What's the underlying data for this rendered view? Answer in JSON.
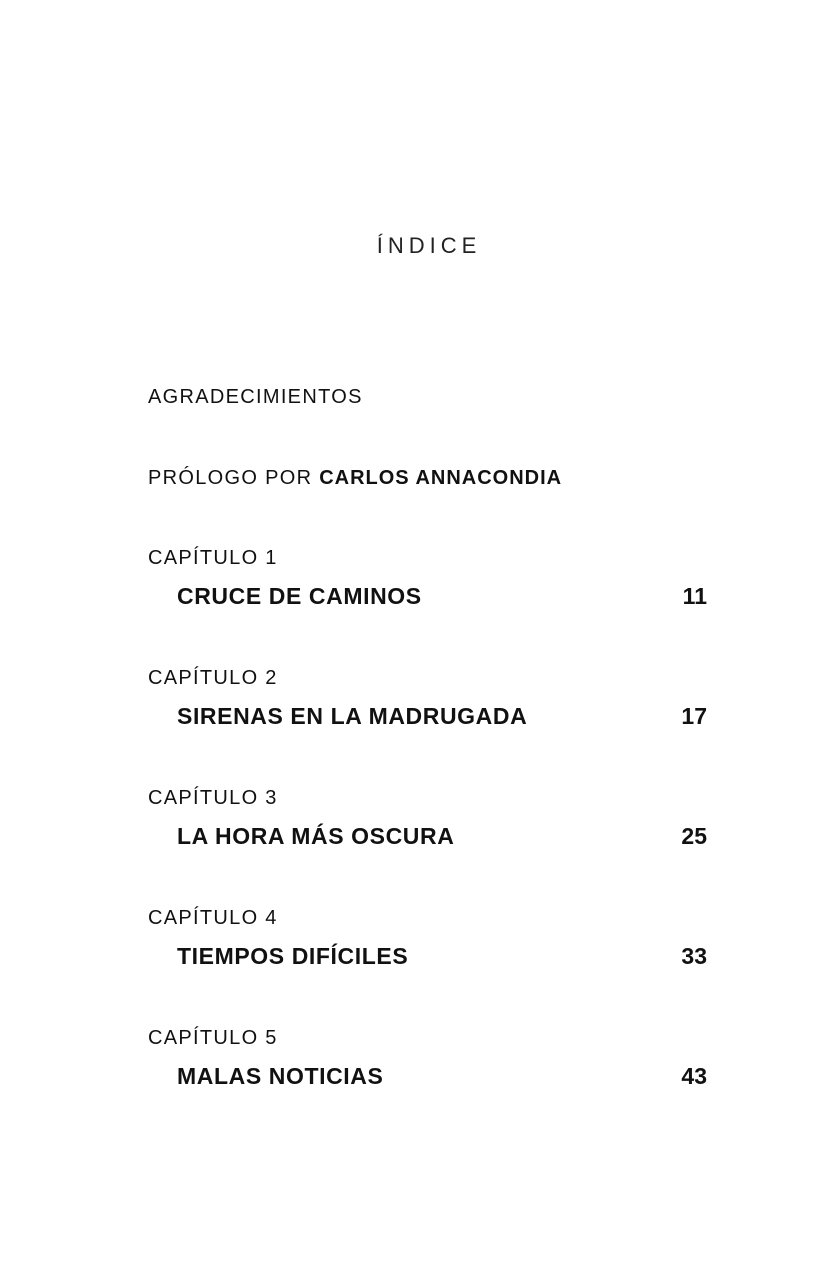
{
  "title": "ÍNDICE",
  "entries": {
    "acknowledgements": "AGRADECIMIENTOS",
    "prologue_prefix": "PRÓLOGO POR",
    "prologue_author": "CARLOS ANNACONDIA"
  },
  "chapters": [
    {
      "label": "CAPÍTULO 1",
      "title": "CRUCE DE CAMINOS",
      "page": "11"
    },
    {
      "label": "CAPÍTULO 2",
      "title": "SIRENAS EN LA MADRUGADA",
      "page": "17"
    },
    {
      "label": "CAPÍTULO 3",
      "title": "LA HORA MÁS OSCURA",
      "page": "25"
    },
    {
      "label": "CAPÍTULO 4",
      "title": "TIEMPOS DIFÍCILES",
      "page": "33"
    },
    {
      "label": "CAPÍTULO 5",
      "title": "MALAS NOTICIAS",
      "page": "43"
    }
  ]
}
